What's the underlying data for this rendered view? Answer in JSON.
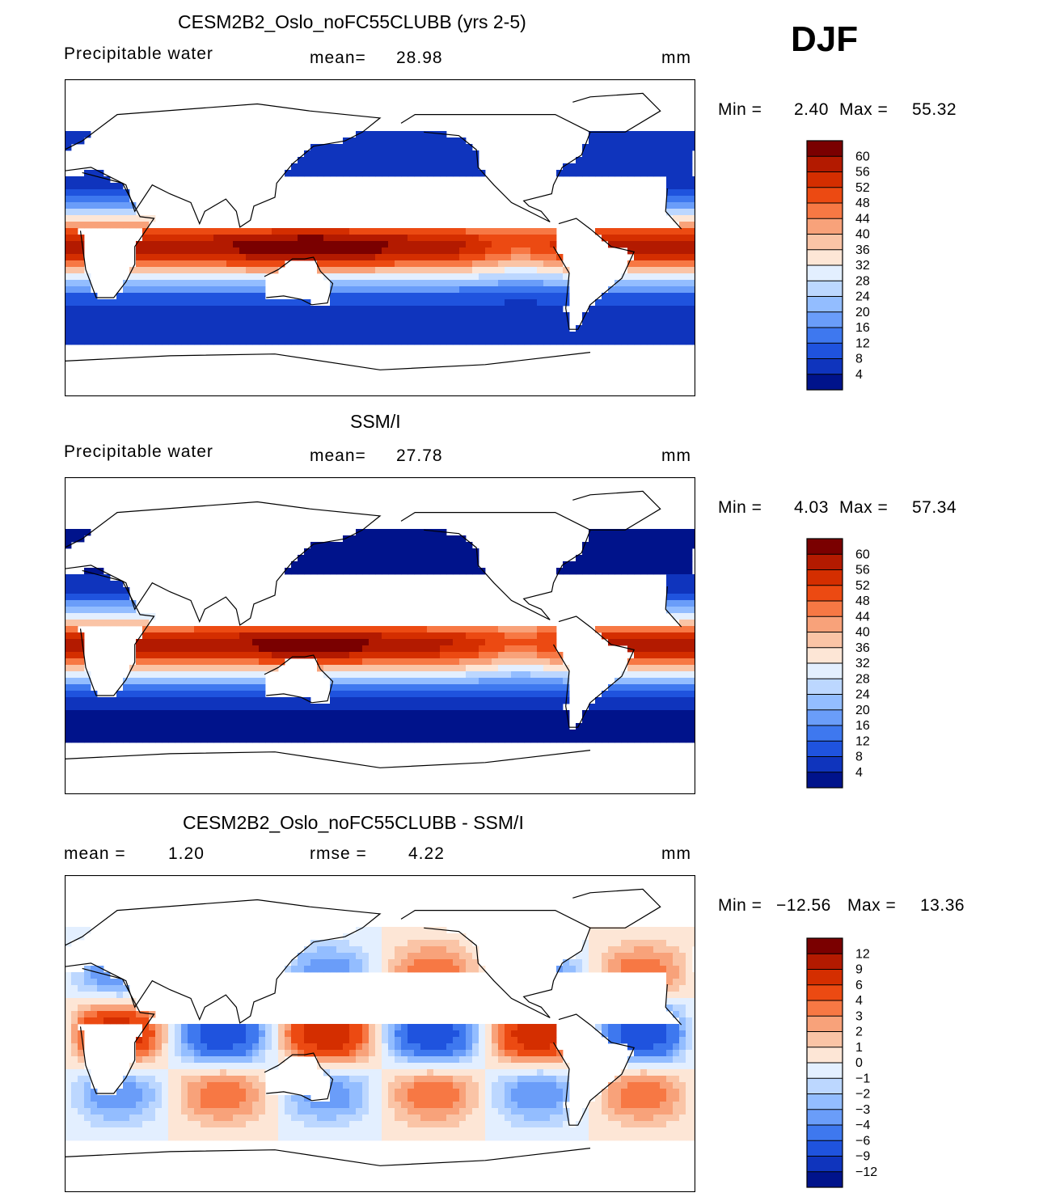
{
  "season": "DJF",
  "units": "mm",
  "chart_data": [
    {
      "type": "heatmap",
      "title": "CESM2B2_Oslo_noFC55CLUBB (yrs 2-5)",
      "variable": "Precipitable water",
      "stat_label": "mean=",
      "stat_value": "28.98",
      "units": "mm",
      "min_label": "Min =",
      "min": "2.40",
      "max_label": "Max =",
      "max": "55.32",
      "colorbar": {
        "levels": [
          "60",
          "56",
          "52",
          "48",
          "44",
          "40",
          "36",
          "32",
          "28",
          "24",
          "20",
          "16",
          "12",
          "8",
          "4"
        ],
        "colors": [
          "#7a0000",
          "#b31a00",
          "#d42e00",
          "#ec4a12",
          "#f77844",
          "#f8a27a",
          "#fac4a6",
          "#fde6d6",
          "#e3efff",
          "#bcd7ff",
          "#93bdff",
          "#6a9df9",
          "#3e78ef",
          "#1f53de",
          "#0f34bd",
          "#00138b"
        ]
      },
      "field": "model"
    },
    {
      "type": "heatmap",
      "title": "SSM/I",
      "variable": "Precipitable water",
      "stat_label": "mean=",
      "stat_value": "27.78",
      "units": "mm",
      "min_label": "Min =",
      "min": "4.03",
      "max_label": "Max =",
      "max": "57.34",
      "colorbar": {
        "levels": [
          "60",
          "56",
          "52",
          "48",
          "44",
          "40",
          "36",
          "32",
          "28",
          "24",
          "20",
          "16",
          "12",
          "8",
          "4"
        ],
        "colors": [
          "#7a0000",
          "#b31a00",
          "#d42e00",
          "#ec4a12",
          "#f77844",
          "#f8a27a",
          "#fac4a6",
          "#fde6d6",
          "#e3efff",
          "#bcd7ff",
          "#93bdff",
          "#6a9df9",
          "#3e78ef",
          "#1f53de",
          "#0f34bd",
          "#00138b"
        ]
      },
      "field": "obs"
    },
    {
      "type": "heatmap",
      "title": "CESM2B2_Oslo_noFC55CLUBB - SSM/I",
      "stat_label": "mean =",
      "stat_value": "1.20",
      "stat2_label": "rmse =",
      "stat2_value": "4.22",
      "units": "mm",
      "min_label": "Min =",
      "min": "−12.56",
      "max_label": "Max =",
      "max": "13.36",
      "colorbar": {
        "levels": [
          "12",
          "9",
          "6",
          "4",
          "3",
          "2",
          "1",
          "0",
          "−1",
          "−2",
          "−3",
          "−4",
          "−6",
          "−9",
          "−12"
        ],
        "colors": [
          "#7a0000",
          "#b31a00",
          "#d42e00",
          "#ec4a12",
          "#f77844",
          "#f8a27a",
          "#fac4a6",
          "#fde6d6",
          "#e3efff",
          "#bcd7ff",
          "#93bdff",
          "#6a9df9",
          "#3e78ef",
          "#1f53de",
          "#0f34bd",
          "#00138b"
        ]
      },
      "field": "diff"
    }
  ]
}
